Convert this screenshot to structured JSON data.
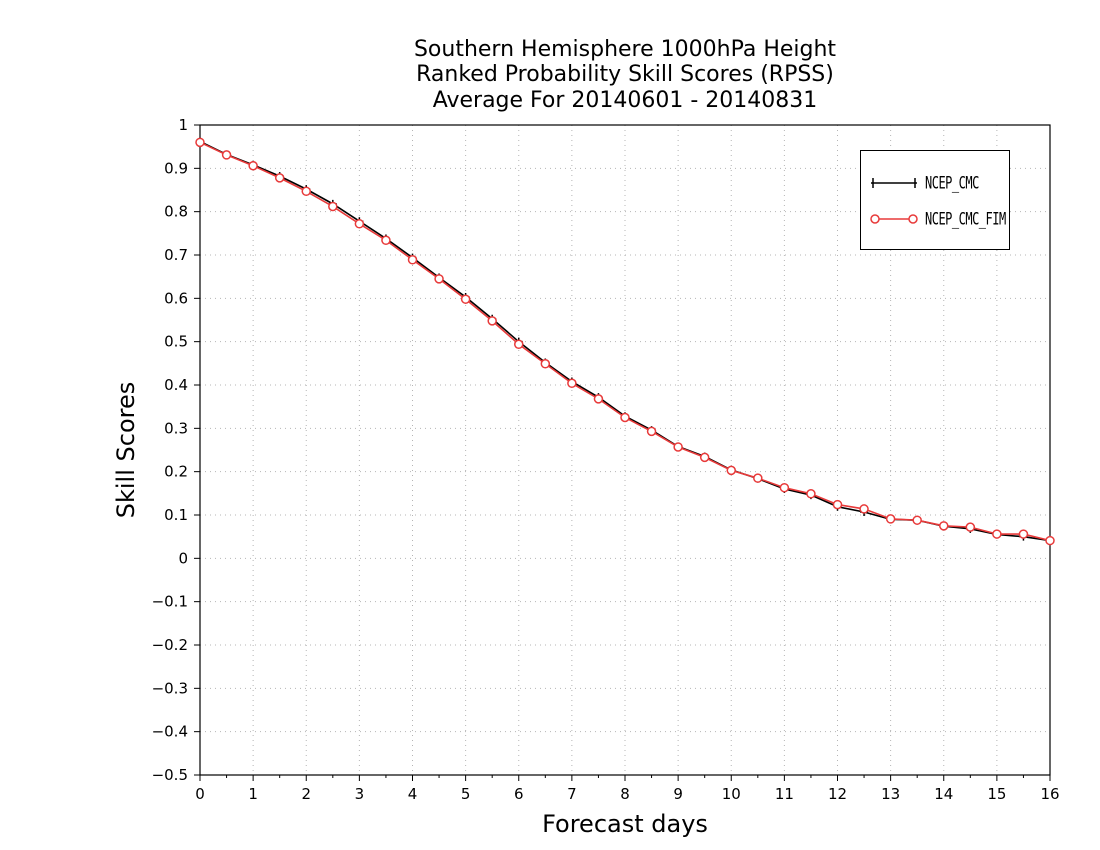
{
  "chart_data": {
    "type": "line",
    "title_lines": [
      "Southern Hemisphere 1000hPa Height",
      "Ranked Probability Skill Scores (RPSS)",
      "Average For 20140601 - 20140831"
    ],
    "xlabel": "Forecast days",
    "ylabel": "Skill Scores",
    "xlim": [
      0,
      16
    ],
    "ylim": [
      -0.5,
      1
    ],
    "x_ticks": [
      0,
      1,
      2,
      3,
      4,
      5,
      6,
      7,
      8,
      9,
      10,
      11,
      12,
      13,
      14,
      15,
      16
    ],
    "y_ticks": [
      -0.5,
      -0.4,
      -0.3,
      -0.2,
      -0.1,
      0,
      0.1,
      0.2,
      0.3,
      0.4,
      0.5,
      0.6,
      0.7,
      0.8,
      0.9,
      1
    ],
    "grid": true,
    "legend_position": "top-right",
    "x": [
      0,
      0.5,
      1,
      1.5,
      2,
      2.5,
      3,
      3.5,
      4,
      4.5,
      5,
      5.5,
      6,
      6.5,
      7,
      7.5,
      8,
      8.5,
      9,
      9.5,
      10,
      10.5,
      11,
      11.5,
      12,
      12.5,
      13,
      13.5,
      14,
      14.5,
      15,
      15.5,
      16
    ],
    "series": [
      {
        "name": "NCEP_CMC",
        "color": "#000000",
        "marker": "plus",
        "values": [
          0.962,
          0.932,
          0.908,
          0.882,
          0.852,
          0.818,
          0.778,
          0.738,
          0.694,
          0.648,
          0.603,
          0.553,
          0.5,
          0.452,
          0.408,
          0.372,
          0.328,
          0.296,
          0.258,
          0.235,
          0.204,
          0.184,
          0.16,
          0.146,
          0.119,
          0.107,
          0.09,
          0.088,
          0.074,
          0.068,
          0.055,
          0.05,
          0.041
        ]
      },
      {
        "name": "NCEP_CMC_FIM",
        "color": "#e83a3a",
        "marker": "circle",
        "values": [
          0.96,
          0.931,
          0.906,
          0.878,
          0.847,
          0.812,
          0.772,
          0.734,
          0.689,
          0.645,
          0.598,
          0.548,
          0.494,
          0.449,
          0.404,
          0.368,
          0.325,
          0.293,
          0.257,
          0.233,
          0.203,
          0.185,
          0.163,
          0.149,
          0.124,
          0.114,
          0.091,
          0.088,
          0.075,
          0.072,
          0.056,
          0.056,
          0.041
        ]
      }
    ]
  }
}
